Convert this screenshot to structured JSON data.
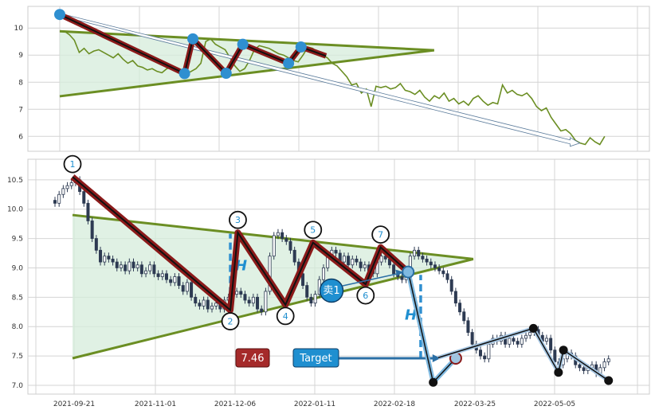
{
  "chart_data": [
    {
      "type": "line",
      "panel": "overview",
      "title": "",
      "xlabel": "",
      "ylabel": "",
      "ylim": [
        5.45,
        10.8
      ],
      "yticks": [
        "6",
        "7",
        "8",
        "9",
        "10"
      ],
      "grid": true,
      "colors": {
        "line": "#6b8e23",
        "triangle": "#6b8e23",
        "fill": "#d5ecdb",
        "zigzag": "#8b1a1a",
        "pivot": "#2f8fd0",
        "trend_arrow": "#5a7a9a"
      },
      "series": [
        {
          "values": [
            9.9,
            9.88,
            9.75,
            9.55,
            9.1,
            9.25,
            9.05,
            9.15,
            9.2,
            9.1,
            9.0,
            8.9,
            9.05,
            8.85,
            8.7,
            8.8,
            8.6,
            8.55,
            8.45,
            8.5,
            8.4,
            8.35,
            8.5,
            8.55,
            8.45,
            8.35,
            8.3,
            8.4,
            8.5,
            8.7,
            9.5,
            9.6,
            9.4,
            9.3,
            9.2,
            8.9,
            8.6,
            8.4,
            8.5,
            8.8,
            9.2,
            9.35,
            9.3,
            9.25,
            9.15,
            9.05,
            9.0,
            8.9,
            8.8,
            8.75,
            9.0,
            9.3,
            9.25,
            9.1,
            9.0,
            8.9,
            8.7,
            8.6,
            8.4,
            8.2,
            7.9,
            7.95,
            7.6,
            7.75,
            7.1,
            7.85,
            7.8,
            7.85,
            7.75,
            7.8,
            7.95,
            7.7,
            7.65,
            7.55,
            7.7,
            7.45,
            7.3,
            7.5,
            7.4,
            7.6,
            7.3,
            7.4,
            7.2,
            7.3,
            7.15,
            7.4,
            7.5,
            7.3,
            7.15,
            7.25,
            7.2,
            7.9,
            7.6,
            7.7,
            7.55,
            7.5,
            7.6,
            7.4,
            7.1,
            6.95,
            7.05,
            6.7,
            6.45,
            6.2,
            6.25,
            6.1,
            5.85,
            5.75,
            5.7,
            5.95,
            5.8,
            5.7,
            6.0
          ]
        }
      ],
      "triangle": {
        "upper": [
          [
            0,
            9.88
          ],
          [
            40,
            9.55
          ],
          [
            90,
            9.18
          ]
        ],
        "lower": [
          [
            0,
            7.48
          ],
          [
            40,
            8.35
          ],
          [
            90,
            9.18
          ]
        ]
      },
      "zigzag": [
        [
          0,
          10.5
        ],
        [
          30,
          8.32
        ],
        [
          32,
          9.6
        ],
        [
          40,
          8.33
        ],
        [
          44,
          9.4
        ],
        [
          55,
          8.7
        ],
        [
          58,
          9.3
        ],
        [
          64,
          8.97
        ]
      ],
      "trend_arrow": {
        "from": [
          0,
          10.5
        ],
        "to": [
          125,
          5.75
        ]
      }
    },
    {
      "type": "candlestick",
      "panel": "main",
      "title": "",
      "xlabel": "",
      "ylabel": "",
      "ylim": [
        6.85,
        10.85
      ],
      "x_tick_labels": [
        "2021-09-21",
        "2021-11-01",
        "2021-12-06",
        "2022-01-11",
        "2022-02-18",
        "2022-03-25",
        "2022-05-05"
      ],
      "yticks": [
        "7.0",
        "7.5",
        "8.0",
        "8.5",
        "9.0",
        "9.5",
        "10.0",
        "10.5"
      ],
      "grid": true,
      "colors": {
        "candle": "#2d3a52",
        "triangle": "#6b8e23",
        "fill": "#d5ecdb",
        "zigzag": "#8b1a1a",
        "breakout": "#2f8fd0",
        "forecast": "#111111",
        "badge_red": "#a52a2a",
        "badge_blue": "#1f8fd0"
      },
      "candles_close": [
        10.1,
        10.25,
        10.35,
        10.4,
        10.45,
        10.5,
        10.3,
        10.1,
        9.8,
        9.5,
        9.3,
        9.1,
        9.2,
        9.15,
        9.1,
        9.0,
        9.05,
        8.95,
        9.1,
        9.0,
        9.05,
        8.9,
        8.95,
        9.05,
        8.9,
        8.85,
        8.9,
        8.8,
        8.75,
        8.85,
        8.7,
        8.6,
        8.75,
        8.5,
        8.4,
        8.35,
        8.45,
        8.3,
        8.35,
        8.4,
        8.3,
        8.45,
        8.5,
        8.55,
        8.6,
        8.55,
        8.45,
        8.4,
        8.5,
        8.3,
        8.25,
        8.6,
        9.2,
        9.55,
        9.6,
        9.5,
        9.45,
        9.3,
        9.1,
        8.9,
        8.7,
        8.5,
        8.4,
        8.55,
        8.8,
        9.0,
        9.2,
        9.3,
        9.25,
        9.1,
        9.2,
        9.05,
        9.15,
        9.1,
        9.0,
        9.05,
        8.95,
        8.9,
        9.1,
        9.2,
        9.15,
        9.05,
        8.9,
        8.85,
        8.8,
        8.95,
        9.2,
        9.3,
        9.2,
        9.15,
        9.1,
        9.05,
        9.0,
        8.95,
        8.9,
        8.8,
        8.6,
        8.4,
        8.25,
        8.1,
        7.9,
        7.7,
        7.6,
        7.5,
        7.45,
        7.7,
        7.8,
        7.75,
        7.85,
        7.7,
        7.8,
        7.75,
        7.7,
        7.8,
        7.85,
        7.9,
        7.95,
        7.85,
        7.75,
        7.8,
        7.6,
        7.4,
        7.35,
        7.45,
        7.55,
        7.5,
        7.35,
        7.3,
        7.25,
        7.3,
        7.35,
        7.2,
        7.3,
        7.4,
        7.45
      ],
      "triangle": {
        "upper": [
          [
            0,
            9.9
          ],
          [
            74,
            9.25
          ],
          [
            160,
            9.15
          ]
        ],
        "lower": [
          [
            0,
            7.46
          ],
          [
            74,
            8.45
          ],
          [
            160,
            9.15
          ]
        ]
      },
      "zigzag": [
        {
          "label": "1",
          "x": 0,
          "y": 10.55
        },
        {
          "label": "2",
          "x": 63,
          "y": 8.28
        },
        {
          "label": "3",
          "x": 66,
          "y": 9.6
        },
        {
          "label": "4",
          "x": 85,
          "y": 8.37
        },
        {
          "label": "5",
          "x": 96,
          "y": 9.43
        },
        {
          "label": "6",
          "x": 117,
          "y": 8.72
        },
        {
          "label": "7",
          "x": 123,
          "y": 9.35
        }
      ],
      "breakout_point": [
        134,
        8.93
      ],
      "breakout_path": [
        [
          134,
          8.93
        ],
        [
          144,
          7.05
        ],
        [
          153,
          7.46
        ]
      ],
      "forecast": [
        [
          146,
          7.47
        ],
        [
          184,
          7.97
        ],
        [
          194,
          7.22
        ],
        [
          196,
          7.6
        ],
        [
          214,
          7.08
        ]
      ],
      "h_measure_left": {
        "x": 63,
        "y1": 8.17,
        "y2": 9.58,
        "label": "H"
      },
      "h_measure_right": {
        "x": 139,
        "y1": 7.46,
        "y2": 8.88,
        "label": "H"
      },
      "target_line": {
        "y": 7.46,
        "from_x": 98,
        "to_x": 145
      },
      "price_badge": "7.46",
      "target_badge": "Target",
      "sell_badge": "卖1"
    }
  ]
}
